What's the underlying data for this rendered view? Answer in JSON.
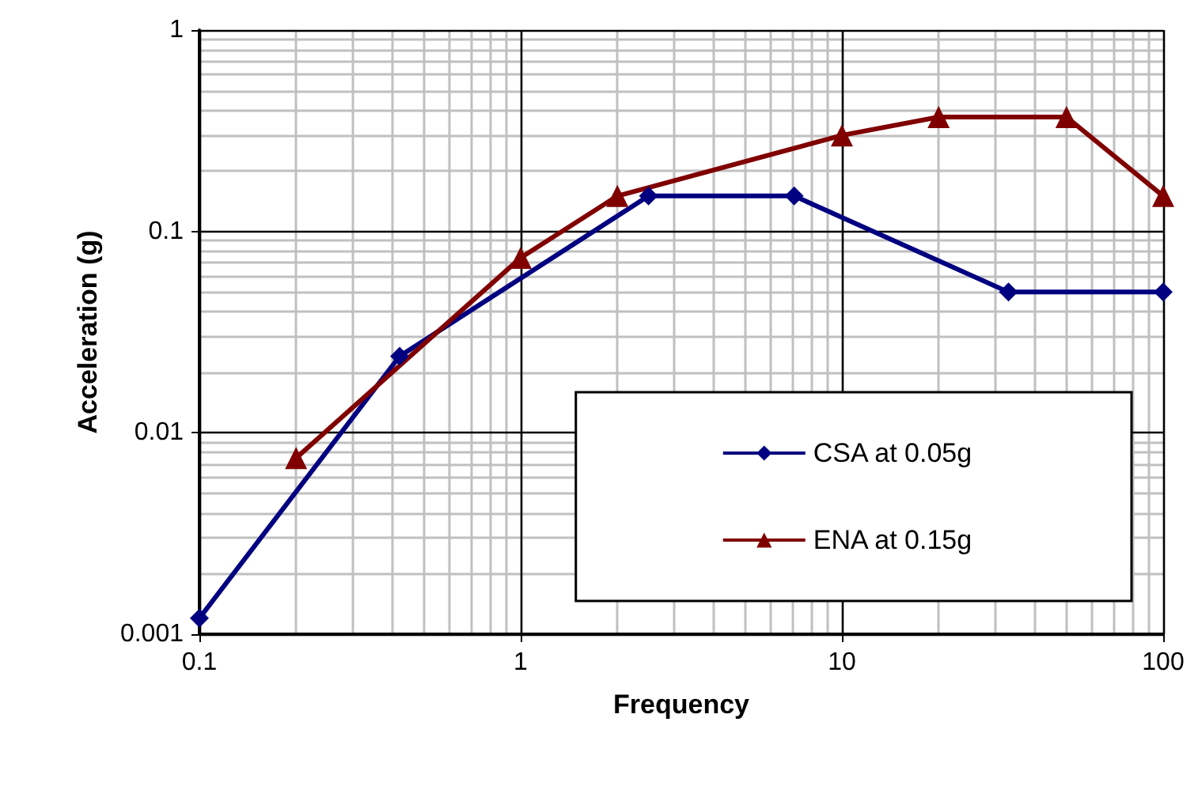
{
  "chart_data": {
    "type": "line",
    "xlabel": "Frequency",
    "ylabel": "Acceleration (g)",
    "log": "xy",
    "xlim": [
      0.1,
      100
    ],
    "xticks": [
      0.1,
      1,
      10,
      100
    ],
    "ylim": [
      0.001,
      1
    ],
    "yticks": [
      0.001,
      0.01,
      0.1,
      1
    ],
    "grid": true,
    "legend": "bottom right",
    "line_style": "solid",
    "series": [
      {
        "name": "CSA at 0.05g",
        "color": "#000080",
        "marker": "diamond",
        "x": [
          0.1,
          0.42,
          2.5,
          7.1,
          33,
          100
        ],
        "values": [
          0.0012,
          0.024,
          0.15,
          0.15,
          0.05,
          0.05
        ]
      },
      {
        "name": "ENA at 0.15g",
        "color": "#800000",
        "marker": "triangle",
        "x": [
          0.2,
          1,
          2,
          10,
          20,
          50,
          100
        ],
        "values": [
          0.0075,
          0.074,
          0.15,
          0.3,
          0.37,
          0.37,
          0.15
        ]
      }
    ]
  }
}
